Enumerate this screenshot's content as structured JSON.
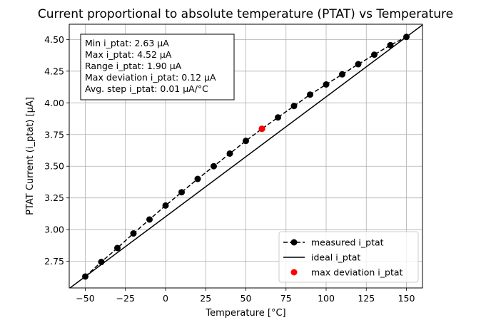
{
  "chart_data": {
    "type": "line",
    "title": "Current proportional to absolute temperature (PTAT) vs Temperature",
    "xlabel": "Temperature [°C]",
    "ylabel": "PTAT Current (i_ptat) [µA]",
    "xlim": [
      -60,
      160
    ],
    "ylim": [
      2.54,
      4.62
    ],
    "grid": true,
    "x_ticks": [
      -50,
      -25,
      0,
      25,
      50,
      75,
      100,
      125,
      150
    ],
    "y_ticks": [
      2.75,
      3.0,
      3.25,
      3.5,
      3.75,
      4.0,
      4.25,
      4.5
    ],
    "x_tick_labels": [
      "−50",
      "−25",
      "0",
      "25",
      "50",
      "75",
      "100",
      "125",
      "150"
    ],
    "y_tick_labels": [
      "2.75",
      "3.00",
      "3.25",
      "3.50",
      "3.75",
      "4.00",
      "4.25",
      "4.50"
    ],
    "series": [
      {
        "name": "measured i_ptat",
        "style": "dashed-marker",
        "color": "#000000",
        "x": [
          -50,
          -40,
          -30,
          -20,
          -10,
          0,
          10,
          20,
          30,
          40,
          50,
          60,
          70,
          80,
          90,
          100,
          110,
          120,
          130,
          140,
          150
        ],
        "y": [
          2.63,
          2.745,
          2.855,
          2.97,
          3.08,
          3.19,
          3.295,
          3.4,
          3.5,
          3.6,
          3.7,
          3.795,
          3.885,
          3.975,
          4.065,
          4.145,
          4.225,
          4.305,
          4.38,
          4.455,
          4.52
        ]
      },
      {
        "name": "ideal i_ptat",
        "style": "solid",
        "color": "#000000",
        "x": [
          -60,
          160
        ],
        "y": [
          2.5355,
          4.6145
        ]
      },
      {
        "name": "max deviation i_ptat",
        "style": "marker",
        "color": "#ff0000",
        "x": [
          60
        ],
        "y": [
          3.795
        ]
      }
    ],
    "legend_position": "lower-right",
    "stats_box": [
      "Min i_ptat: 2.63 µA",
      "Max i_ptat: 4.52 µA",
      "Range i_ptat: 1.90 µA",
      "Max deviation i_ptat: 0.12 µA",
      "Avg. step i_ptat: 0.01 µA/°C"
    ]
  }
}
